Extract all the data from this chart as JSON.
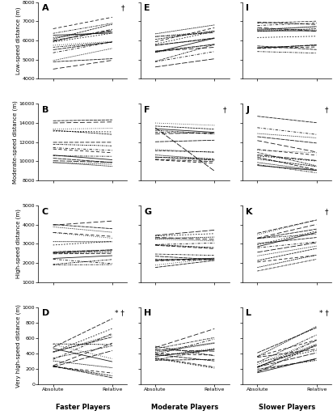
{
  "panels": {
    "A": {
      "row": 0,
      "col": 0,
      "label": "A",
      "symbol": "†",
      "ylim": [
        4000,
        8000
      ],
      "yticks": [
        4000,
        5000,
        6000,
        7000,
        8000
      ]
    },
    "B": {
      "row": 1,
      "col": 0,
      "label": "B",
      "symbol": "",
      "ylim": [
        8000,
        16000
      ],
      "yticks": [
        8000,
        10000,
        12000,
        14000,
        16000
      ]
    },
    "C": {
      "row": 2,
      "col": 0,
      "label": "C",
      "symbol": "",
      "ylim": [
        1000,
        5000
      ],
      "yticks": [
        1000,
        2000,
        3000,
        4000,
        5000
      ]
    },
    "D": {
      "row": 3,
      "col": 0,
      "label": "D",
      "symbol": "* †",
      "ylim": [
        0,
        1000
      ],
      "yticks": [
        0,
        200,
        400,
        600,
        800,
        1000
      ]
    },
    "E": {
      "row": 0,
      "col": 1,
      "label": "E",
      "symbol": "",
      "ylim": [
        4000,
        8000
      ],
      "yticks": [
        4000,
        5000,
        6000,
        7000,
        8000
      ]
    },
    "F": {
      "row": 1,
      "col": 1,
      "label": "F",
      "symbol": "†",
      "ylim": [
        8000,
        16000
      ],
      "yticks": [
        8000,
        10000,
        12000,
        14000,
        16000
      ]
    },
    "G": {
      "row": 2,
      "col": 1,
      "label": "G",
      "symbol": "",
      "ylim": [
        1000,
        5000
      ],
      "yticks": [
        1000,
        2000,
        3000,
        4000,
        5000
      ]
    },
    "H": {
      "row": 3,
      "col": 1,
      "label": "H",
      "symbol": "",
      "ylim": [
        0,
        1000
      ],
      "yticks": [
        0,
        200,
        400,
        600,
        800,
        1000
      ]
    },
    "I": {
      "row": 0,
      "col": 2,
      "label": "I",
      "symbol": "",
      "ylim": [
        4000,
        8000
      ],
      "yticks": [
        4000,
        5000,
        6000,
        7000,
        8000
      ]
    },
    "J": {
      "row": 1,
      "col": 2,
      "label": "J",
      "symbol": "†",
      "ylim": [
        8000,
        16000
      ],
      "yticks": [
        8000,
        10000,
        12000,
        14000,
        16000
      ]
    },
    "K": {
      "row": 2,
      "col": 2,
      "label": "K",
      "symbol": "†",
      "ylim": [
        1000,
        5000
      ],
      "yticks": [
        1000,
        2000,
        3000,
        4000,
        5000
      ]
    },
    "L": {
      "row": 3,
      "col": 2,
      "label": "L",
      "symbol": "* †",
      "ylim": [
        0,
        1000
      ],
      "yticks": [
        0,
        200,
        400,
        600,
        800,
        1000
      ]
    }
  },
  "col_labels": [
    "Faster Players",
    "Moderate Players",
    "Slower Players"
  ],
  "row_ylabels": [
    "Low-speed distance (m)",
    "Moderate-speed distance (m)",
    "High-speed distance (m)",
    "Very high-speed distance (m)"
  ],
  "x_labels": [
    "Absolute",
    "Relative"
  ]
}
